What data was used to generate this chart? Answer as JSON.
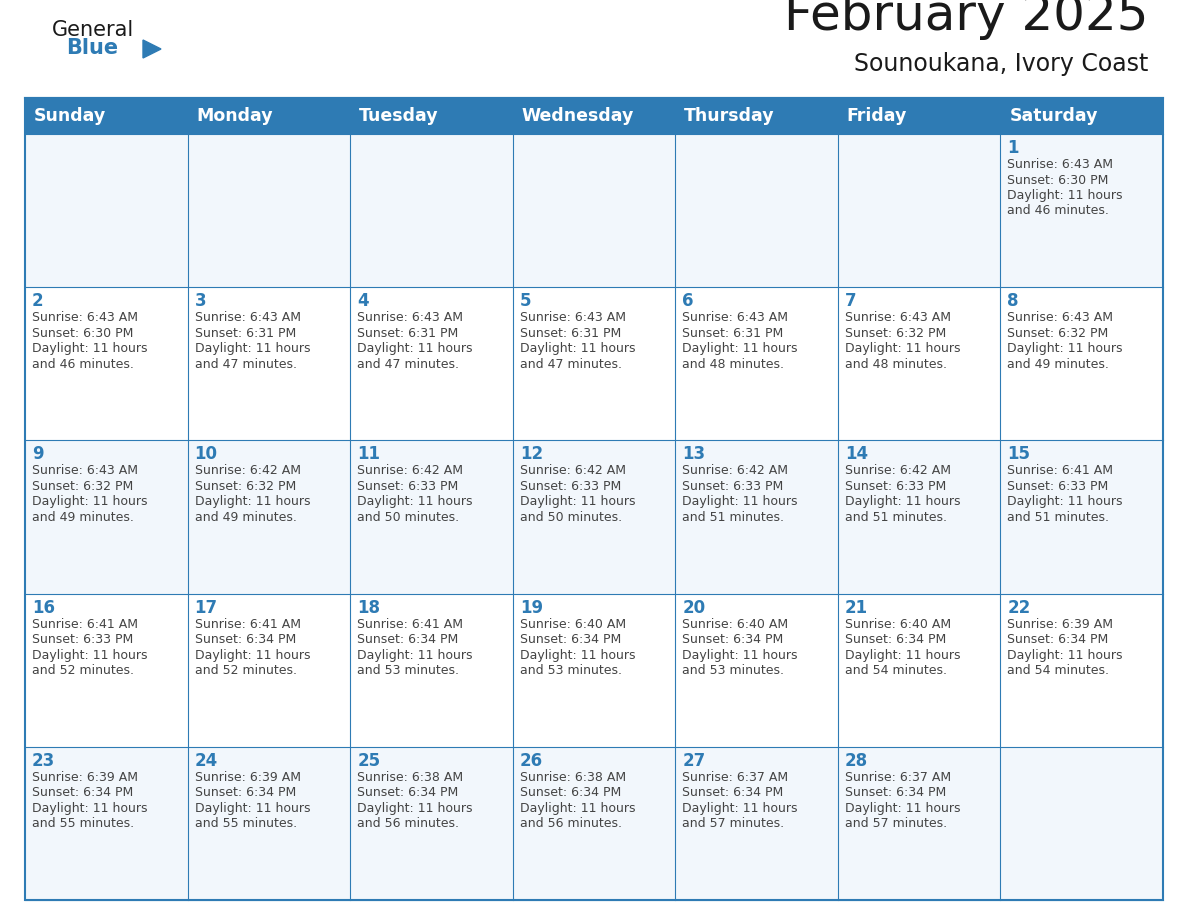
{
  "title": "February 2025",
  "subtitle": "Sounoukana, Ivory Coast",
  "days_of_week": [
    "Sunday",
    "Monday",
    "Tuesday",
    "Wednesday",
    "Thursday",
    "Friday",
    "Saturday"
  ],
  "header_bg": "#2E7BB4",
  "header_text_color": "#FFFFFF",
  "cell_bg_odd": "#F2F7FC",
  "cell_bg_even": "#FFFFFF",
  "grid_line_color": "#2E7BB4",
  "day_number_color": "#2E7BB4",
  "text_color": "#444444",
  "title_color": "#1a1a1a",
  "logo_general_color": "#1a1a1a",
  "logo_blue_color": "#2E7BB4",
  "calendar_data": [
    [
      null,
      null,
      null,
      null,
      null,
      null,
      {
        "day": 1,
        "sunrise": "6:43 AM",
        "sunset": "6:30 PM",
        "daylight": "11 hours and 46 minutes."
      }
    ],
    [
      {
        "day": 2,
        "sunrise": "6:43 AM",
        "sunset": "6:30 PM",
        "daylight": "11 hours and 46 minutes."
      },
      {
        "day": 3,
        "sunrise": "6:43 AM",
        "sunset": "6:31 PM",
        "daylight": "11 hours and 47 minutes."
      },
      {
        "day": 4,
        "sunrise": "6:43 AM",
        "sunset": "6:31 PM",
        "daylight": "11 hours and 47 minutes."
      },
      {
        "day": 5,
        "sunrise": "6:43 AM",
        "sunset": "6:31 PM",
        "daylight": "11 hours and 47 minutes."
      },
      {
        "day": 6,
        "sunrise": "6:43 AM",
        "sunset": "6:31 PM",
        "daylight": "11 hours and 48 minutes."
      },
      {
        "day": 7,
        "sunrise": "6:43 AM",
        "sunset": "6:32 PM",
        "daylight": "11 hours and 48 minutes."
      },
      {
        "day": 8,
        "sunrise": "6:43 AM",
        "sunset": "6:32 PM",
        "daylight": "11 hours and 49 minutes."
      }
    ],
    [
      {
        "day": 9,
        "sunrise": "6:43 AM",
        "sunset": "6:32 PM",
        "daylight": "11 hours and 49 minutes."
      },
      {
        "day": 10,
        "sunrise": "6:42 AM",
        "sunset": "6:32 PM",
        "daylight": "11 hours and 49 minutes."
      },
      {
        "day": 11,
        "sunrise": "6:42 AM",
        "sunset": "6:33 PM",
        "daylight": "11 hours and 50 minutes."
      },
      {
        "day": 12,
        "sunrise": "6:42 AM",
        "sunset": "6:33 PM",
        "daylight": "11 hours and 50 minutes."
      },
      {
        "day": 13,
        "sunrise": "6:42 AM",
        "sunset": "6:33 PM",
        "daylight": "11 hours and 51 minutes."
      },
      {
        "day": 14,
        "sunrise": "6:42 AM",
        "sunset": "6:33 PM",
        "daylight": "11 hours and 51 minutes."
      },
      {
        "day": 15,
        "sunrise": "6:41 AM",
        "sunset": "6:33 PM",
        "daylight": "11 hours and 51 minutes."
      }
    ],
    [
      {
        "day": 16,
        "sunrise": "6:41 AM",
        "sunset": "6:33 PM",
        "daylight": "11 hours and 52 minutes."
      },
      {
        "day": 17,
        "sunrise": "6:41 AM",
        "sunset": "6:34 PM",
        "daylight": "11 hours and 52 minutes."
      },
      {
        "day": 18,
        "sunrise": "6:41 AM",
        "sunset": "6:34 PM",
        "daylight": "11 hours and 53 minutes."
      },
      {
        "day": 19,
        "sunrise": "6:40 AM",
        "sunset": "6:34 PM",
        "daylight": "11 hours and 53 minutes."
      },
      {
        "day": 20,
        "sunrise": "6:40 AM",
        "sunset": "6:34 PM",
        "daylight": "11 hours and 53 minutes."
      },
      {
        "day": 21,
        "sunrise": "6:40 AM",
        "sunset": "6:34 PM",
        "daylight": "11 hours and 54 minutes."
      },
      {
        "day": 22,
        "sunrise": "6:39 AM",
        "sunset": "6:34 PM",
        "daylight": "11 hours and 54 minutes."
      }
    ],
    [
      {
        "day": 23,
        "sunrise": "6:39 AM",
        "sunset": "6:34 PM",
        "daylight": "11 hours and 55 minutes."
      },
      {
        "day": 24,
        "sunrise": "6:39 AM",
        "sunset": "6:34 PM",
        "daylight": "11 hours and 55 minutes."
      },
      {
        "day": 25,
        "sunrise": "6:38 AM",
        "sunset": "6:34 PM",
        "daylight": "11 hours and 56 minutes."
      },
      {
        "day": 26,
        "sunrise": "6:38 AM",
        "sunset": "6:34 PM",
        "daylight": "11 hours and 56 minutes."
      },
      {
        "day": 27,
        "sunrise": "6:37 AM",
        "sunset": "6:34 PM",
        "daylight": "11 hours and 57 minutes."
      },
      {
        "day": 28,
        "sunrise": "6:37 AM",
        "sunset": "6:34 PM",
        "daylight": "11 hours and 57 minutes."
      },
      null
    ]
  ]
}
